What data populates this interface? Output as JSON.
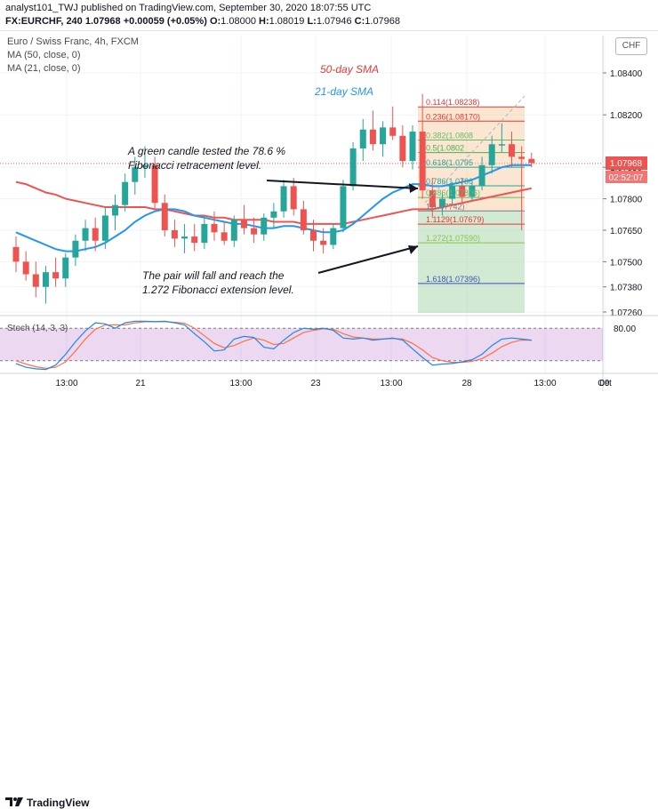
{
  "header": {
    "line1": "analyst101_TWJ published on TradingView.com, September 30, 2020 18:07:55 UTC",
    "symbol": "FX:EURCHF, 240",
    "price": "1.07968",
    "change": "+0.00059 (+0.05%)",
    "o_label": "O:",
    "o": "1.08000",
    "h_label": "H:",
    "h": "1.08019",
    "l_label": "L:",
    "l": "1.07946",
    "c_label": "C:",
    "c": "1.07968"
  },
  "legend": {
    "title": "Euro / Swiss Franc, 4h, FXCM",
    "ma50": "MA (50, close, 0)",
    "ma21": "MA (21, close, 0)"
  },
  "currency_button": "CHF",
  "annotations": {
    "sma50": "50-day SMA",
    "sma21": "21-day SMA",
    "green_candle_1": "A green candle tested the 78.6 %",
    "green_candle_2": "Fibonacci retracement level.",
    "fall_1": "The pair will fall and reach the",
    "fall_2": "1.272 Fibonacci extension level."
  },
  "price_tags": {
    "last": "1.07968",
    "countdown": "02:52:07"
  },
  "fib_levels": [
    {
      "ratio": "0.114",
      "value": 1.08238,
      "label": "0.114(1.08238)",
      "color": "#e53935"
    },
    {
      "ratio": "0.236",
      "value": 1.0817,
      "label": "0.236(1.08170)",
      "color": "#e53935"
    },
    {
      "ratio": "0.382",
      "value": 1.0808,
      "label": "0.382(1.0808",
      "color": "#66bb6a"
    },
    {
      "ratio": "0.5",
      "value": 1.0802,
      "label": "0.5(1.0802",
      "color": "#4caf50"
    },
    {
      "ratio": "0.618",
      "value": 1.0795,
      "label": "0.618(1.0795",
      "color": "#26a69a"
    },
    {
      "ratio": "0.786",
      "value": 1.07862,
      "label": "0.786(1.0786",
      "color": "#26a69a"
    },
    {
      "ratio": "0.886",
      "value": 1.07806,
      "label": "0.886(1.07806)",
      "color": "#66bb6a"
    },
    {
      "ratio": "1",
      "value": 1.07742,
      "label": "1(1.07742)",
      "color": "#787b86"
    },
    {
      "ratio": "1.1129",
      "value": 1.07679,
      "label": "1.1129(1.07679)",
      "color": "#e53935"
    },
    {
      "ratio": "1.272",
      "value": 1.0759,
      "label": "1.272(1.07590)",
      "color": "#8bc34a"
    },
    {
      "ratio": "1.618",
      "value": 1.07396,
      "label": "1.618(1.07396)",
      "color": "#3f51b5"
    }
  ],
  "stoch": {
    "label": "Stoch (14, 3, 3)",
    "level_label": "80.00",
    "k": [
      15,
      8,
      5,
      4,
      12,
      32,
      55,
      75,
      90,
      88,
      80,
      90,
      93,
      93,
      92,
      93,
      90,
      86,
      70,
      55,
      38,
      40,
      60,
      65,
      63,
      45,
      42,
      58,
      72,
      80,
      78,
      80,
      76,
      62,
      60,
      62,
      58,
      60,
      62,
      58,
      42,
      26,
      12,
      14,
      15,
      18,
      22,
      32,
      48,
      60,
      62,
      60,
      58
    ],
    "d": [
      20,
      14,
      9,
      6,
      8,
      18,
      38,
      60,
      78,
      86,
      86,
      86,
      90,
      92,
      92,
      92,
      91,
      89,
      80,
      66,
      52,
      44,
      48,
      56,
      62,
      58,
      50,
      52,
      62,
      72,
      76,
      79,
      78,
      70,
      64,
      62,
      60,
      60,
      61,
      60,
      52,
      40,
      26,
      20,
      17,
      17,
      19,
      24,
      34,
      46,
      54,
      58,
      58
    ]
  },
  "chart_data": {
    "type": "candlestick",
    "symbol": "FX:EURCHF",
    "timeframe": "240",
    "y_ticks": [
      1.0726,
      1.0738,
      1.075,
      1.0765,
      1.078,
      1.0795,
      1.082,
      1.084
    ],
    "y_tick_labels": [
      "1.07260",
      "1.07380",
      "1.07500",
      "1.07650",
      "1.07800",
      "1.07950",
      "1.08200",
      "1.08400"
    ],
    "x_tick_labels": [
      "13:00",
      "21",
      "13:00",
      "23",
      "13:00",
      "28",
      "13:00",
      "Oct",
      "09"
    ],
    "candles": [
      [
        1.0757,
        1.0762,
        1.0745,
        1.075
      ],
      [
        1.075,
        1.0755,
        1.0741,
        1.0744
      ],
      [
        1.0744,
        1.075,
        1.0733,
        1.0738
      ],
      [
        1.0738,
        1.0748,
        1.073,
        1.0745
      ],
      [
        1.0745,
        1.0752,
        1.0738,
        1.0742
      ],
      [
        1.0742,
        1.0754,
        1.0738,
        1.0752
      ],
      [
        1.0752,
        1.0763,
        1.0748,
        1.076
      ],
      [
        1.076,
        1.077,
        1.0755,
        1.0766
      ],
      [
        1.0766,
        1.0771,
        1.0755,
        1.076
      ],
      [
        1.076,
        1.0776,
        1.0756,
        1.0772
      ],
      [
        1.0772,
        1.0782,
        1.0765,
        1.0777
      ],
      [
        1.0777,
        1.0792,
        1.0774,
        1.0788
      ],
      [
        1.0788,
        1.08,
        1.0782,
        1.0795
      ],
      [
        1.0795,
        1.0805,
        1.079,
        1.0796
      ],
      [
        1.0796,
        1.08,
        1.0775,
        1.0778
      ],
      [
        1.0778,
        1.0782,
        1.0762,
        1.0765
      ],
      [
        1.0765,
        1.077,
        1.0757,
        1.0761
      ],
      [
        1.0761,
        1.0768,
        1.0754,
        1.0762
      ],
      [
        1.0762,
        1.0768,
        1.0755,
        1.0759
      ],
      [
        1.0759,
        1.0772,
        1.0756,
        1.0768
      ],
      [
        1.0768,
        1.0774,
        1.076,
        1.0764
      ],
      [
        1.0764,
        1.0769,
        1.0758,
        1.076
      ],
      [
        1.076,
        1.0772,
        1.0757,
        1.077
      ],
      [
        1.077,
        1.0777,
        1.0763,
        1.0766
      ],
      [
        1.0766,
        1.0771,
        1.0759,
        1.0763
      ],
      [
        1.0763,
        1.0773,
        1.076,
        1.0771
      ],
      [
        1.0771,
        1.0778,
        1.0766,
        1.0774
      ],
      [
        1.0774,
        1.0789,
        1.0771,
        1.0786
      ],
      [
        1.0786,
        1.079,
        1.0772,
        1.0775
      ],
      [
        1.0775,
        1.0779,
        1.0763,
        1.0765
      ],
      [
        1.0765,
        1.077,
        1.0755,
        1.076
      ],
      [
        1.076,
        1.0766,
        1.0754,
        1.0758
      ],
      [
        1.0758,
        1.0768,
        1.0756,
        1.0766
      ],
      [
        1.0766,
        1.0789,
        1.0764,
        1.0786
      ],
      [
        1.0786,
        1.0807,
        1.0784,
        1.0804
      ],
      [
        1.0804,
        1.0818,
        1.0798,
        1.0813
      ],
      [
        1.0813,
        1.0822,
        1.0803,
        1.0806
      ],
      [
        1.0806,
        1.0817,
        1.08,
        1.0814
      ],
      [
        1.0814,
        1.0824,
        1.0808,
        1.081
      ],
      [
        1.081,
        1.0815,
        1.0795,
        1.0798
      ],
      [
        1.0798,
        1.0815,
        1.0794,
        1.0812
      ],
      [
        1.0812,
        1.083,
        1.078,
        1.0784
      ],
      [
        1.0784,
        1.079,
        1.0771,
        1.0776
      ],
      [
        1.0776,
        1.0783,
        1.0772,
        1.078
      ],
      [
        1.078,
        1.0788,
        1.0777,
        1.0786
      ],
      [
        1.0786,
        1.079,
        1.0778,
        1.0781
      ],
      [
        1.0781,
        1.0788,
        1.0779,
        1.0786
      ],
      [
        1.0786,
        1.08,
        1.0784,
        1.0796
      ],
      [
        1.0796,
        1.081,
        1.0792,
        1.0806
      ],
      [
        1.0806,
        1.0816,
        1.0802,
        1.0806
      ],
      [
        1.0806,
        1.0812,
        1.0795,
        1.08
      ],
      [
        1.08,
        1.0805,
        1.0765,
        1.0799
      ],
      [
        1.0799,
        1.0802,
        1.0795,
        1.0797
      ]
    ],
    "series": [
      {
        "name": "MA (50, close, 0)",
        "color": "#ef5350",
        "values": [
          1.0788,
          1.0787,
          1.0785,
          1.0783,
          1.0782,
          1.078,
          1.0779,
          1.0778,
          1.0777,
          1.0776,
          1.0776,
          1.0776,
          1.0776,
          1.0776,
          1.0775,
          1.0775,
          1.0774,
          1.0773,
          1.0772,
          1.0772,
          1.0771,
          1.0771,
          1.077,
          1.077,
          1.077,
          1.077,
          1.0769,
          1.0769,
          1.0769,
          1.0768,
          1.0768,
          1.0768,
          1.0768,
          1.0768,
          1.0769,
          1.077,
          1.0771,
          1.0772,
          1.0773,
          1.0774,
          1.0775,
          1.0775,
          1.0775,
          1.0776,
          1.0777,
          1.0778,
          1.0779,
          1.078,
          1.0781,
          1.0782,
          1.0783,
          1.0784,
          1.0785
        ]
      },
      {
        "name": "MA (21, close, 0)",
        "color": "#2196f3",
        "values": [
          1.0764,
          1.0762,
          1.076,
          1.0758,
          1.0756,
          1.0755,
          1.0755,
          1.0756,
          1.0757,
          1.0759,
          1.0762,
          1.0765,
          1.0769,
          1.0772,
          1.0774,
          1.0775,
          1.0775,
          1.0774,
          1.0772,
          1.0771,
          1.077,
          1.0769,
          1.0768,
          1.0768,
          1.0767,
          1.0766,
          1.0766,
          1.0767,
          1.0767,
          1.0766,
          1.0765,
          1.0764,
          1.0764,
          1.0765,
          1.0768,
          1.0772,
          1.0776,
          1.078,
          1.0783,
          1.0785,
          1.0787,
          1.0787,
          1.0786,
          1.0786,
          1.0787,
          1.0788,
          1.0789,
          1.0791,
          1.0793,
          1.0795,
          1.0796,
          1.0796,
          1.0796
        ]
      }
    ],
    "colors": {
      "up": "#26a69a",
      "down": "#ef5350",
      "ma50": "#ef5350",
      "ma21": "#2196f3"
    }
  }
}
